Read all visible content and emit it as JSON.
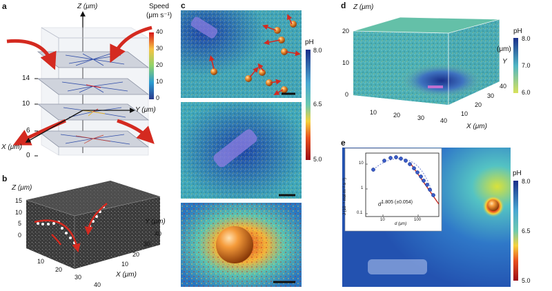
{
  "panels": {
    "a": {
      "label": "a",
      "axis_z": "Z (μm)",
      "axis_y": "Y (μm)",
      "axis_x": "X (μm)",
      "ticks": [
        "14",
        "10",
        "6",
        "0"
      ],
      "colorbar": {
        "title_line1": "Speed",
        "title_line2": "(μm s⁻¹)",
        "ticks": [
          "40",
          "30",
          "20",
          "10",
          "0"
        ]
      }
    },
    "b": {
      "label": "b",
      "axis_z": "Z (μm)",
      "z_ticks": [
        "15",
        "10",
        "5",
        "0"
      ],
      "axis_y": "Y (μm)",
      "axis_x": "X (μm)",
      "x_ticks": [
        "10",
        "20",
        "30",
        "40"
      ],
      "y_ticks": [
        "10",
        "20",
        "30",
        "40"
      ]
    },
    "c": {
      "label": "c",
      "colorbar": {
        "title": "pH",
        "ticks": [
          "8.0",
          "6.5",
          "5.0"
        ]
      }
    },
    "d": {
      "label": "d",
      "axis_z": "Z (μm)",
      "z_ticks": [
        "20",
        "10",
        "0"
      ],
      "axis_x": "X (μm)",
      "axis_y": "Y",
      "axis_y_unit": "(μm)",
      "x_ticks": [
        "10",
        "20",
        "30",
        "40"
      ],
      "y_ticks": [
        "10",
        "20",
        "30",
        "40"
      ],
      "colorbar": {
        "title": "pH",
        "ticks": [
          "8.0",
          "7.0",
          "6.0"
        ]
      }
    },
    "e": {
      "label": "e",
      "inset": {
        "ylabel": "J (10⁻⁵ mol m⁻² s⁻¹)",
        "xlabel": "d (μm)",
        "annotation": "d",
        "annotation_exp": "1.805 (±0.054)",
        "y_ticks": [
          "10",
          "1",
          "0.1"
        ],
        "x_ticks": [
          "10",
          "100"
        ]
      },
      "colorbar": {
        "title": "pH",
        "ticks": [
          "8.0",
          "6.5",
          "5.0"
        ]
      }
    }
  },
  "colors": {
    "ph_high": "#1a2f8a",
    "ph_mid": "#4fc3c8",
    "ph_low": "#9b0d16",
    "speed_high": "#d7191c",
    "arrow_red": "#d42a20"
  }
}
